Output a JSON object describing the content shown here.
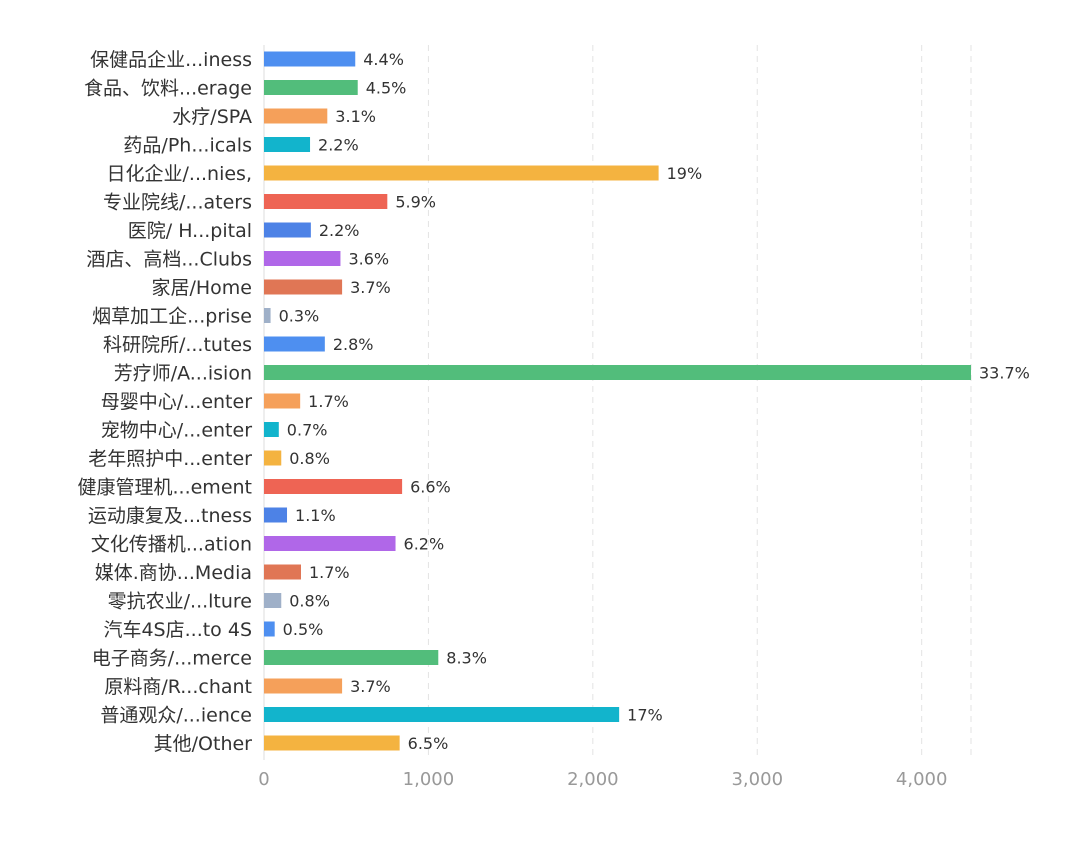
{
  "chart_data": {
    "type": "bar",
    "orientation": "horizontal",
    "title": "",
    "xlabel": "",
    "ylabel": "",
    "xlim": [
      0,
      4300
    ],
    "x_ticks": [
      0,
      1000,
      2000,
      3000,
      4000
    ],
    "x_tick_labels": [
      "0",
      "1,000",
      "2,000",
      "3,000",
      "4,000"
    ],
    "grid": "vertical-dashed",
    "legend": "none",
    "categories": [
      "保健品企业...iness",
      "食品、饮料...erage",
      "水疗/SPA",
      "药品/Ph...icals",
      "日化企业/...nies,",
      "专业院线/...aters",
      "医院/ H...pital",
      "酒店、高档...Clubs",
      "家居/Home",
      "烟草加工企...prise",
      "科研院所/...tutes",
      "芳疗师/A...ision",
      "母婴中心/...enter",
      "宠物中心/...enter",
      "老年照护中...enter",
      "健康管理机...ement",
      "运动康复及...tness",
      "文化传播机...ation",
      "媒体.商协...Media",
      "零抗农业/...lture",
      "汽车4S店...to 4S",
      "电子商务/...merce",
      "原料商/R...chant",
      "普通观众/...ience",
      "其他/Other"
    ],
    "values": [
      555,
      570,
      385,
      280,
      2400,
      750,
      285,
      465,
      475,
      40,
      370,
      4300,
      220,
      90,
      105,
      840,
      140,
      800,
      225,
      105,
      65,
      1060,
      475,
      2160,
      825
    ],
    "data_labels": [
      "4.4%",
      "4.5%",
      "3.1%",
      "2.2%",
      "19%",
      "5.9%",
      "2.2%",
      "3.6%",
      "3.7%",
      "0.3%",
      "2.8%",
      "33.7%",
      "1.7%",
      "0.7%",
      "0.8%",
      "6.6%",
      "1.1%",
      "6.2%",
      "1.7%",
      "0.8%",
      "0.5%",
      "8.3%",
      "3.7%",
      "17%",
      "6.5%"
    ],
    "colors": [
      "#4e8ff0",
      "#52bd7b",
      "#f5a05a",
      "#12b4cc",
      "#f4b340",
      "#ee6454",
      "#4d82e6",
      "#b067e8",
      "#e07655",
      "#9fb0c8"
    ]
  }
}
